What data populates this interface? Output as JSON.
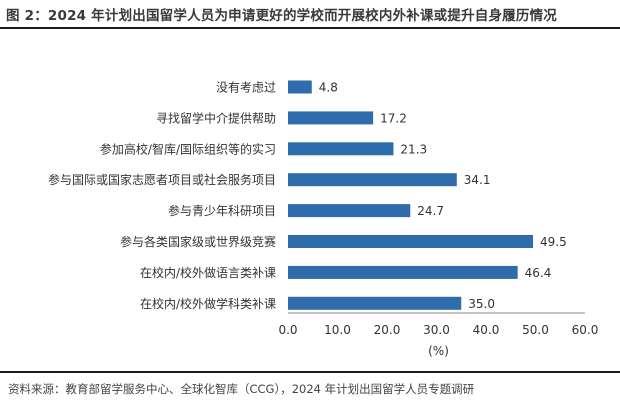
{
  "title": "图 2：2024 年计划出国留学人员为申请更好的学校而开展校内外补课或提升自身履历情况",
  "source": "资料来源：教育部留学服务中心、全球化智库（CCG），2024 年计划出国留学人员专题调研",
  "colors": {
    "bar": "#2F6CAB",
    "axis": "#888888",
    "text": "#333333"
  },
  "chart_data": {
    "type": "bar",
    "orientation": "horizontal",
    "categories": [
      "没有考虑过",
      "寻找留学中介提供帮助",
      "参加高校/智库/国际组织等的实习",
      "参与国际或国家志愿者项目或社会服务项目",
      "参与青少年科研项目",
      "参与各类国家级或世界级竞赛",
      "在校内/校外做语言类补课",
      "在校内/校外做学科类补课"
    ],
    "values": [
      4.8,
      17.2,
      21.3,
      34.1,
      24.7,
      49.5,
      46.4,
      35.0
    ],
    "value_labels": [
      "4.8",
      "17.2",
      "21.3",
      "34.1",
      "24.7",
      "49.5",
      "46.4",
      "35.0"
    ],
    "xlim": [
      0,
      60
    ],
    "xticks": [
      "0.0",
      "10.0",
      "20.0",
      "30.0",
      "40.0",
      "50.0",
      "60.0"
    ],
    "xlabel": "(%)",
    "grid": false,
    "legend": "none"
  }
}
